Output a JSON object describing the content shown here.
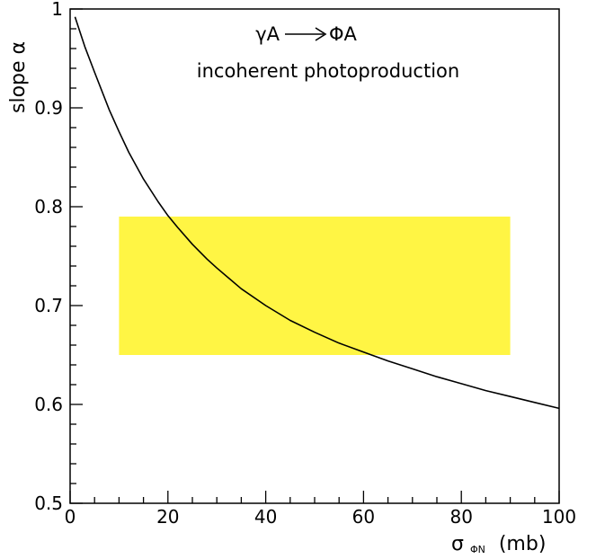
{
  "chart_data": {
    "type": "line",
    "title": "",
    "xlabel": "σ",
    "xlabel_sub": "ΦN",
    "xlabel_unit": "(mb)",
    "ylabel": "slope  α",
    "xlim": [
      0,
      100
    ],
    "ylim": [
      0.5,
      1.0
    ],
    "x_ticks": [
      0,
      20,
      40,
      60,
      80,
      100
    ],
    "x_tick_labels": [
      "0",
      "20",
      "40",
      "60",
      "80",
      "100"
    ],
    "y_ticks": [
      0.5,
      0.6,
      0.7,
      0.8,
      0.9,
      1.0
    ],
    "y_tick_labels": [
      "0.5",
      "0.6",
      "0.7",
      "0.8",
      "0.9",
      "1"
    ],
    "grid": false,
    "series": [
      {
        "color": "#000000",
        "x": [
          1,
          3,
          5,
          8,
          10,
          12,
          15,
          18,
          20,
          22,
          25,
          28,
          30,
          35,
          40,
          45,
          50,
          55,
          60,
          65,
          70,
          75,
          80,
          85,
          90,
          95,
          100
        ],
        "y": [
          0.992,
          0.962,
          0.936,
          0.898,
          0.876,
          0.855,
          0.828,
          0.805,
          0.791,
          0.779,
          0.762,
          0.747,
          0.738,
          0.717,
          0.7,
          0.685,
          0.673,
          0.662,
          0.653,
          0.644,
          0.636,
          0.628,
          0.621,
          0.614,
          0.608,
          0.602,
          0.596
        ]
      }
    ],
    "band": {
      "color": "#fff544",
      "x_range": [
        10,
        90
      ],
      "y_range": [
        0.65,
        0.79
      ]
    },
    "annotations": {
      "reaction_left": "γA",
      "reaction_right": "ΦA",
      "label": "incoherent photoproduction"
    }
  }
}
